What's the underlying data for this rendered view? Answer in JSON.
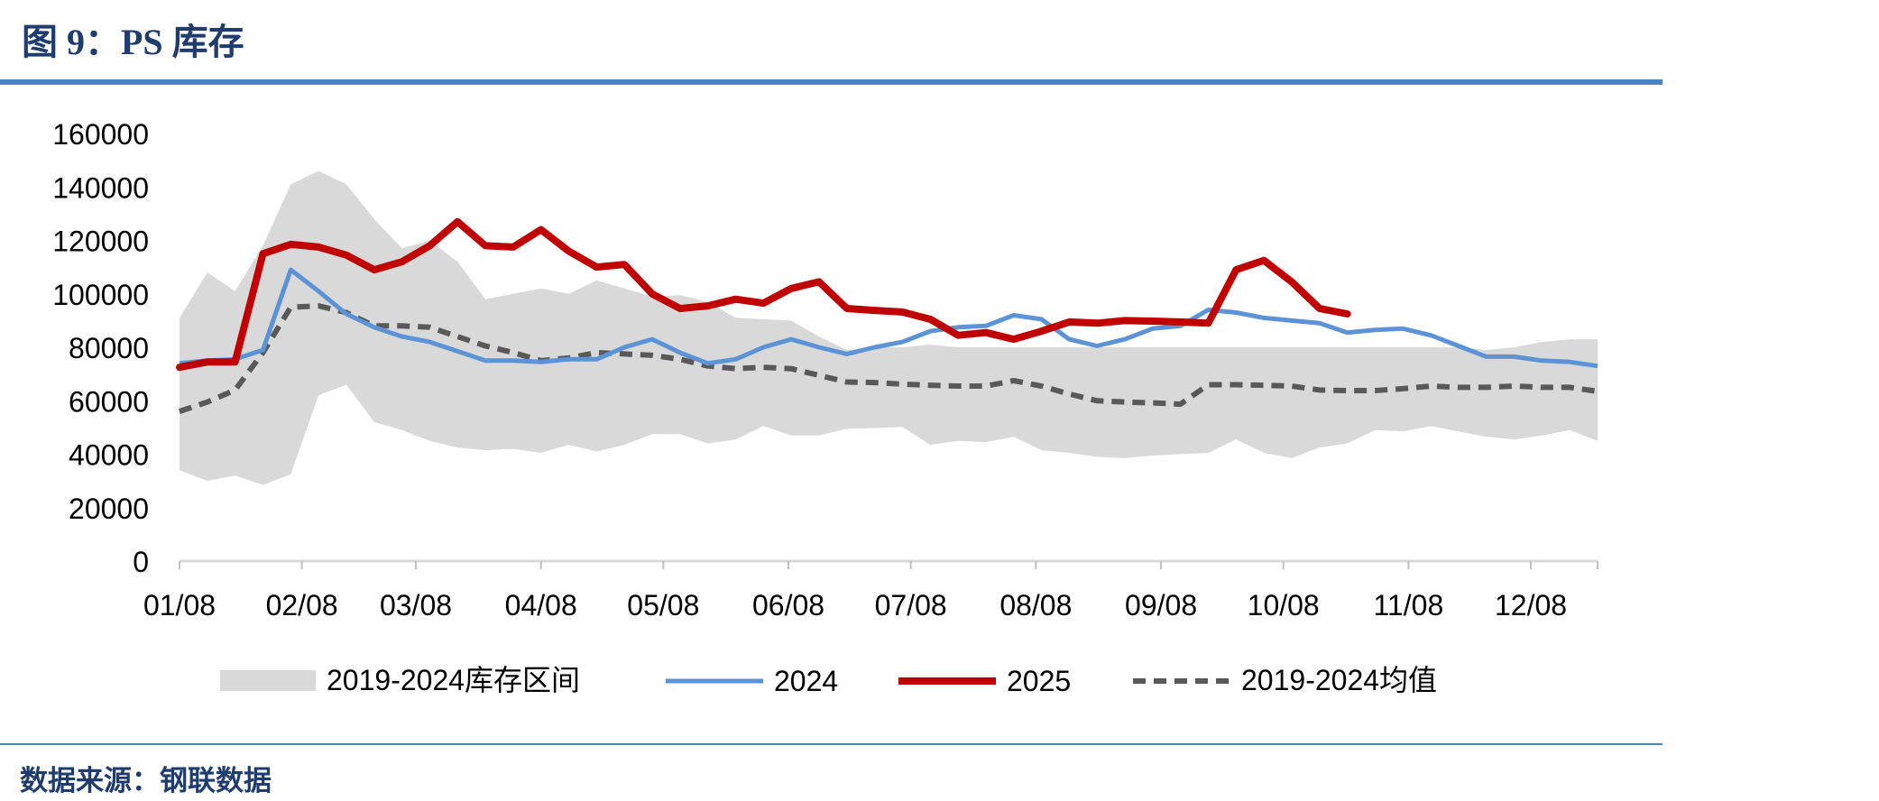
{
  "figure": {
    "title": "图 9：PS 库存",
    "source": "数据来源：钢联数据"
  },
  "colors": {
    "band": "#d9d9d9",
    "s2024": "#5b93d6",
    "s2025": "#c00000",
    "avg": "#595959",
    "rule": "#4f81bd",
    "title": "#1f3c6e"
  },
  "chart_data": {
    "type": "line",
    "y_ticks": [
      "0",
      "20000",
      "40000",
      "60000",
      "80000",
      "100000",
      "120000",
      "140000",
      "160000"
    ],
    "ylim": [
      0,
      160000
    ],
    "x_tick_labels": [
      "01/08",
      "02/08",
      "03/08",
      "04/08",
      "05/08",
      "06/08",
      "07/08",
      "08/08",
      "09/08",
      "10/08",
      "11/08",
      "12/08"
    ],
    "x_tick_weeks": [
      0,
      4.4,
      8.5,
      13,
      17.4,
      21.9,
      26.3,
      30.8,
      35.3,
      39.7,
      44.2,
      48.6
    ],
    "n_weeks": 52,
    "legend": {
      "band_label": "2019-2024库存区间",
      "s2024_label": "2024",
      "s2025_label": "2025",
      "avg_label": "2019-2024均值"
    },
    "band_upper": [
      91000,
      108000,
      101000,
      118000,
      141000,
      146000,
      141000,
      128000,
      117000,
      120000,
      112000,
      98000,
      100000,
      102000,
      100000,
      105000,
      102000,
      99000,
      99500,
      97000,
      91000,
      90500,
      90000,
      84000,
      79000,
      80000,
      80000,
      81000,
      80000,
      80000,
      80000,
      80000,
      80000,
      80000,
      80000,
      80000,
      80000,
      80000,
      80000,
      80000,
      80000,
      80000,
      80000,
      80000,
      80000,
      80000,
      80000,
      79000,
      80000,
      82000,
      83000,
      83000
    ],
    "band_lower": [
      34000,
      30000,
      32000,
      28500,
      32500,
      62000,
      66000,
      52000,
      49000,
      45000,
      42500,
      41500,
      42000,
      40500,
      43500,
      41000,
      43500,
      47500,
      47500,
      44000,
      45500,
      50500,
      47000,
      47000,
      49500,
      49800,
      50200,
      43500,
      45000,
      44500,
      46500,
      41500,
      40500,
      39000,
      38500,
      39500,
      40000,
      40500,
      45500,
      40500,
      38500,
      42500,
      44000,
      49000,
      48500,
      50500,
      48500,
      46500,
      45500,
      47000,
      49000,
      45000
    ],
    "series_2024": [
      74000,
      75000,
      75500,
      79000,
      109000,
      101000,
      92500,
      87500,
      84000,
      82000,
      78500,
      75000,
      75000,
      74500,
      75500,
      75500,
      80000,
      83000,
      78000,
      74000,
      75500,
      80000,
      83000,
      80000,
      77500,
      80000,
      82000,
      86000,
      87500,
      88000,
      92000,
      90500,
      83000,
      80500,
      83000,
      87000,
      88000,
      94000,
      93000,
      91000,
      90000,
      89000,
      85500,
      86500,
      87000,
      84500,
      80500,
      76500,
      76500,
      75000,
      74500,
      73000
    ],
    "series_2025": [
      72500,
      74500,
      74500,
      115000,
      118500,
      117500,
      114500,
      109000,
      112000,
      118000,
      127000,
      118000,
      117500,
      124000,
      116000,
      110000,
      111000,
      100000,
      94500,
      95500,
      98000,
      96500,
      102000,
      104500,
      94500,
      93800,
      93200,
      90500,
      84500,
      85500,
      83000,
      86000,
      89500,
      89000,
      90000,
      89800,
      89500,
      89000,
      109000,
      112500,
      104500,
      94500,
      92500
    ],
    "series_avg": [
      56000,
      59500,
      64000,
      78000,
      95000,
      95500,
      93000,
      88000,
      88000,
      87500,
      84000,
      80500,
      78000,
      75000,
      76000,
      78000,
      77500,
      77000,
      75500,
      73000,
      72000,
      72500,
      72000,
      69500,
      67000,
      66800,
      66200,
      65800,
      65500,
      65500,
      67500,
      65500,
      62500,
      60000,
      59500,
      59200,
      58700,
      66000,
      66000,
      65800,
      65500,
      64000,
      63800,
      63800,
      64500,
      65500,
      65000,
      65000,
      65500,
      65000,
      65000,
      63500
    ]
  }
}
